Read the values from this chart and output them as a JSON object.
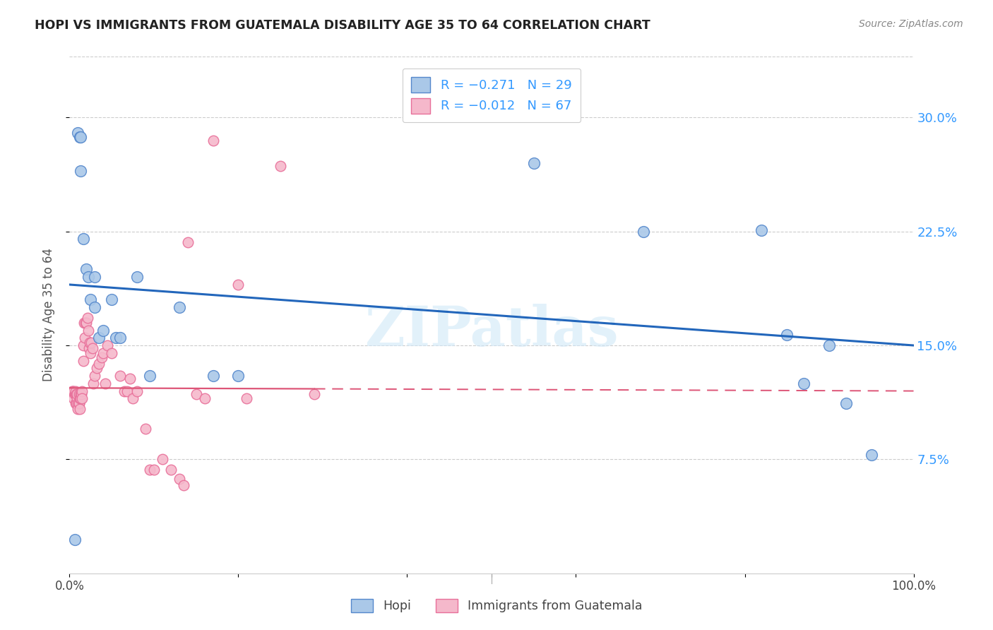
{
  "title": "HOPI VS IMMIGRANTS FROM GUATEMALA DISABILITY AGE 35 TO 64 CORRELATION CHART",
  "source": "Source: ZipAtlas.com",
  "ylabel": "Disability Age 35 to 64",
  "xlim": [
    0.0,
    1.0
  ],
  "ylim": [
    0.0,
    0.34
  ],
  "ytick_vals": [
    0.075,
    0.15,
    0.225,
    0.3
  ],
  "ytick_labels": [
    "7.5%",
    "15.0%",
    "22.5%",
    "30.0%"
  ],
  "hopi_color": "#aac8e8",
  "hopi_edge_color": "#5588cc",
  "guatemala_color": "#f5b8cb",
  "guatemala_edge_color": "#e8709a",
  "hopi_line_color": "#2266bb",
  "guatemala_line_color": "#dd5577",
  "watermark": "ZIPatlas",
  "hopi_x": [
    0.006,
    0.01,
    0.012,
    0.013,
    0.013,
    0.016,
    0.02,
    0.022,
    0.025,
    0.03,
    0.03,
    0.035,
    0.04,
    0.05,
    0.055,
    0.06,
    0.08,
    0.095,
    0.13,
    0.17,
    0.2,
    0.55,
    0.68,
    0.82,
    0.85,
    0.87,
    0.9,
    0.92,
    0.95
  ],
  "hopi_y": [
    0.022,
    0.29,
    0.287,
    0.287,
    0.265,
    0.22,
    0.2,
    0.195,
    0.18,
    0.195,
    0.175,
    0.155,
    0.16,
    0.18,
    0.155,
    0.155,
    0.195,
    0.13,
    0.175,
    0.13,
    0.13,
    0.27,
    0.225,
    0.226,
    0.157,
    0.125,
    0.15,
    0.112,
    0.078
  ],
  "guatemala_x": [
    0.003,
    0.004,
    0.005,
    0.005,
    0.006,
    0.007,
    0.007,
    0.007,
    0.008,
    0.008,
    0.009,
    0.009,
    0.01,
    0.01,
    0.011,
    0.011,
    0.011,
    0.012,
    0.012,
    0.013,
    0.013,
    0.014,
    0.015,
    0.015,
    0.016,
    0.016,
    0.017,
    0.018,
    0.019,
    0.02,
    0.021,
    0.022,
    0.023,
    0.024,
    0.025,
    0.026,
    0.027,
    0.028,
    0.03,
    0.032,
    0.035,
    0.038,
    0.04,
    0.042,
    0.045,
    0.05,
    0.06,
    0.065,
    0.068,
    0.072,
    0.075,
    0.08,
    0.09,
    0.095,
    0.1,
    0.11,
    0.12,
    0.13,
    0.135,
    0.14,
    0.15,
    0.16,
    0.17,
    0.2,
    0.21,
    0.25,
    0.29
  ],
  "guatemala_y": [
    0.12,
    0.12,
    0.12,
    0.115,
    0.118,
    0.118,
    0.112,
    0.12,
    0.112,
    0.118,
    0.115,
    0.118,
    0.112,
    0.108,
    0.118,
    0.112,
    0.112,
    0.115,
    0.108,
    0.118,
    0.115,
    0.118,
    0.12,
    0.115,
    0.15,
    0.14,
    0.165,
    0.155,
    0.165,
    0.165,
    0.168,
    0.16,
    0.148,
    0.152,
    0.145,
    0.152,
    0.148,
    0.125,
    0.13,
    0.135,
    0.138,
    0.142,
    0.145,
    0.125,
    0.15,
    0.145,
    0.13,
    0.12,
    0.12,
    0.128,
    0.115,
    0.12,
    0.095,
    0.068,
    0.068,
    0.075,
    0.068,
    0.062,
    0.058,
    0.218,
    0.118,
    0.115,
    0.285,
    0.19,
    0.115,
    0.268,
    0.118
  ]
}
